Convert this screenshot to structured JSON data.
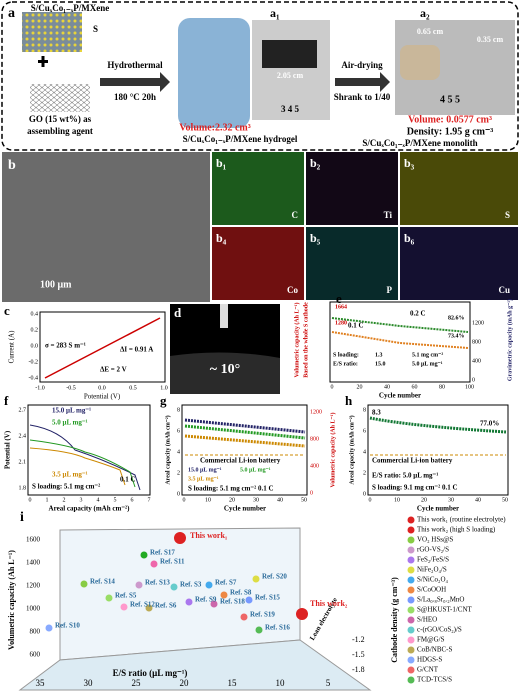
{
  "panel_a": {
    "label": "a",
    "material": "S/CuₓCo₁₋ₓP/MXene",
    "s_legend": "S",
    "go1": "GO (15 wt%) as",
    "go2": "assembling agent",
    "step1": "Hydrothermal",
    "step1_cond": "180 °C 20h",
    "a1": "a₁",
    "a1_width": "2.05 cm",
    "a1_ruler": "3  4  5",
    "a1_volume": "Volume:2.32 cm³",
    "a1_caption": "S/CuₓCo₁₋ₓP/MXene hydrogel",
    "step2": "Air-drying",
    "step2_note": "Shrank to 1/40",
    "a2": "a₂",
    "a2_w": "0.65 cm",
    "a2_h": "0.35 cm",
    "a2_ruler": "4  5  5",
    "a2_volume": "Volume: 0.0577 cm³",
    "a2_density": "Density: 1.95 g cm⁻³",
    "a2_caption": "S/CuₓCo₁₋ₓP/MXene monolith"
  },
  "panel_b": {
    "label": "b",
    "scale": "100 μm",
    "maps": [
      {
        "label": "b₁",
        "element": "C"
      },
      {
        "label": "b₂",
        "element": "Ti"
      },
      {
        "label": "b₃",
        "element": "S"
      },
      {
        "label": "b₄",
        "element": "Co"
      },
      {
        "label": "b₅",
        "element": "P"
      },
      {
        "label": "b₆",
        "element": "Cu"
      }
    ]
  },
  "panel_c": {
    "label": "c",
    "ylabel": "Current (A)",
    "xlabel": "Potential (V)",
    "xticks": [
      "-1.0",
      "-0.5",
      "0.0",
      "0.5",
      "1.0"
    ],
    "yticks": [
      "0.4",
      "0.2",
      "0.0",
      "-0.2",
      "-0.4"
    ],
    "sigma": "σ = 283 S m⁻¹",
    "di": "ΔI = 0.91 A",
    "de": "ΔE = 2 V"
  },
  "panel_d": {
    "label": "d",
    "angle": "~ 10°"
  },
  "panel_e": {
    "label": "e",
    "ylabel": "Volumetric capacity (Ah L⁻¹)",
    "ylabel2": "Based on the whole S cathode",
    "y2label": "Gravimetric capacity (mAh g⁻¹)",
    "xlabel": "Cycle number",
    "xticks": [
      "0",
      "20",
      "40",
      "60",
      "80",
      "100"
    ],
    "y2ticks": [
      "0",
      "400",
      "800",
      "1200"
    ],
    "v1": "1664",
    "v2": "1280",
    "rate1": "0.2 C",
    "rate2": "0.1 C",
    "ret1": "82.6%",
    "ret2": "73.4%",
    "sl": "S loading:",
    "sl1": "1.3",
    "sl2": "5.1 mg cm⁻²",
    "es": "E/S ratio:",
    "es1": "15.0",
    "es2": "5.0 μL mg⁻¹"
  },
  "panel_f": {
    "label": "f",
    "ylabel": "Potential (V)",
    "xlabel": "Areal capacity (mAh cm⁻²)",
    "yticks": [
      "2.7",
      "2.4",
      "2.1",
      "1.8"
    ],
    "xticks": [
      "0",
      "1",
      "2",
      "3",
      "4",
      "5",
      "6",
      "7"
    ],
    "legend": [
      "15.0 μL mg⁻¹",
      "5.0 μL mg⁻¹",
      "3.5 μL mg⁻¹"
    ],
    "rate": "0.1 C",
    "loading": "S loading: 5.1 mg cm⁻²"
  },
  "panel_g": {
    "label": "g",
    "ylabel": "Areal capacity (mAh cm⁻²)",
    "y2label": "Volumetric capacity (Ah L⁻¹)",
    "xlabel": "Cycle number",
    "yticks": [
      "8",
      "6",
      "4",
      "2",
      "0"
    ],
    "y2ticks": [
      "1200",
      "800",
      "400",
      "0"
    ],
    "xticks": [
      "0",
      "10",
      "20",
      "30",
      "40",
      "50"
    ],
    "ref": "Commercial Li-ion battery",
    "legend": [
      "15.0 μL mg⁻¹",
      "5.0 μL mg⁻¹",
      "3.5 μL mg⁻¹"
    ],
    "note": "S loading: 5.1 mg cm⁻²   0.1 C"
  },
  "panel_h": {
    "label": "h",
    "ylabel": "Areal capacity (mAh cm⁻²)",
    "xlabel": "Cycle number",
    "yticks": [
      "8",
      "6",
      "4",
      "2",
      "0"
    ],
    "xticks": [
      "0",
      "10",
      "20",
      "30",
      "40",
      "50"
    ],
    "start": "8.3",
    "ret": "77.0%",
    "ref": "Commercial Li-ion battery",
    "es": "E/S ratio: 5.0 μL mg⁻¹",
    "note": "S loading: 9.1 mg cm⁻²   0.1 C"
  },
  "panel_i": {
    "label": "i",
    "ylabel": "Volumetric capacity (Ah L⁻¹)",
    "xlabel": "E/S ratio (μL mg⁻¹)",
    "zlabel": "Cathode density (g cm⁻³)",
    "yticks": [
      "1600",
      "1400",
      "1200",
      "1000",
      "800",
      "600"
    ],
    "xticks": [
      "35",
      "30",
      "25",
      "20",
      "15",
      "10",
      "5"
    ],
    "zticks": [
      "-1.2",
      "-1.5",
      "-1.8"
    ],
    "lean": "Lean electrolyte",
    "work1": "This work₁",
    "work2": "This work₂",
    "refs": [
      "Ref. S17",
      "Ref. S11",
      "Ref. S14",
      "Ref. S13",
      "Ref. S9",
      "Ref. S20",
      "Ref. S7",
      "Ref. S8",
      "Ref. S15",
      "Ref. S5",
      "Ref. S18",
      "Ref. S3",
      "Ref. S12",
      "Ref. S6",
      "Ref. S10",
      "Ref. S19",
      "Ref. S16"
    ],
    "legend": [
      "This work₁ (routine electrolyte)",
      "This work₂ (high S loading)",
      "VO₂ HSs@S",
      "rGO-VS₂/S",
      "FeS₂/FeS/S",
      "NiFe₂O₄/S",
      "S/NiCo₂O₄",
      "S/CoOOH",
      "S/La₀.₈Sr₀.₂MnO",
      "S@HKUST-1/CNT",
      "S/HEO",
      "c-(rGO/CoS₂)/S",
      "FM@G/S",
      "CoB/NBC-S",
      "HDGS-S",
      "G/CNT",
      "TCD-TCS/S"
    ]
  }
}
